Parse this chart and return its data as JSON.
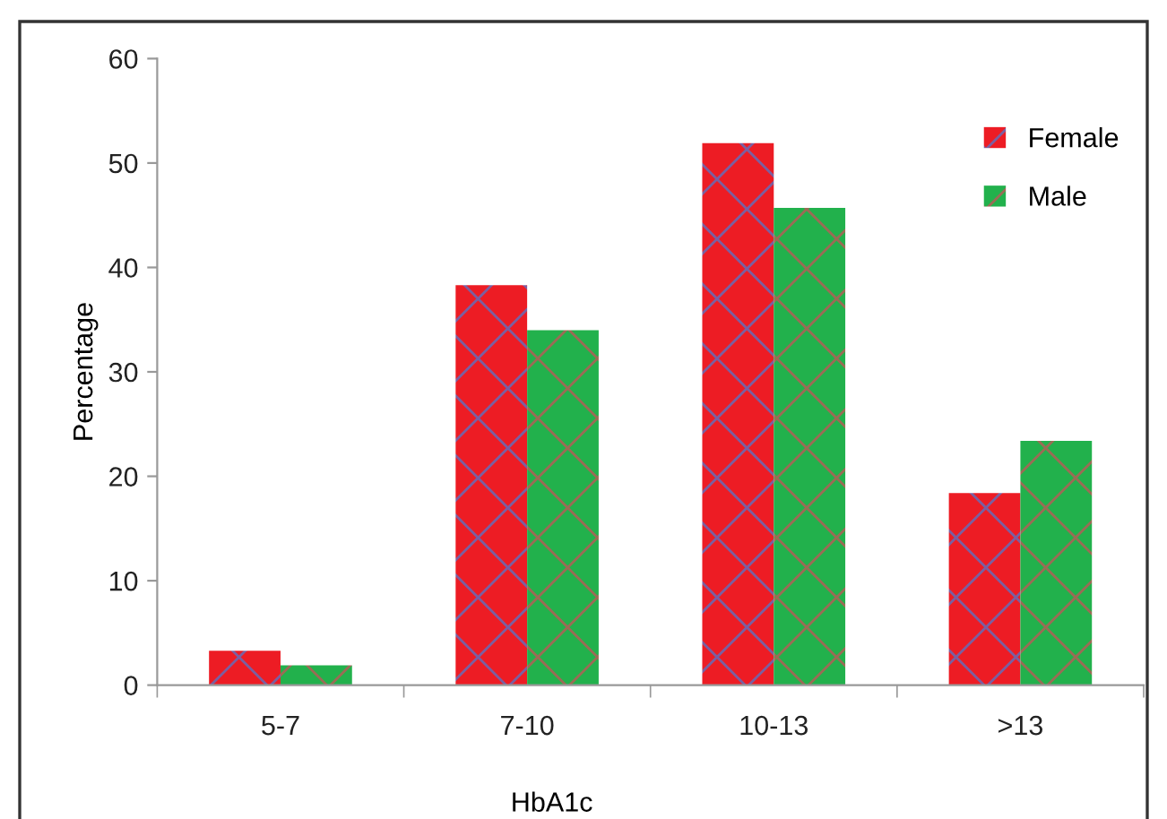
{
  "chart_data": {
    "type": "bar",
    "xlabel": "HbA1c",
    "ylabel": "Percentage",
    "categories": [
      "5-7",
      "7-10",
      "10-13",
      ">13"
    ],
    "series": [
      {
        "name": "Female",
        "color": "#ed1c24",
        "values": [
          3.3,
          38.3,
          51.9,
          18.4
        ]
      },
      {
        "name": "Male",
        "color": "#22b14c",
        "values": [
          1.9,
          34.0,
          45.7,
          23.4
        ]
      }
    ],
    "ylim": [
      0,
      60
    ],
    "yticks": [
      0,
      10,
      20,
      30,
      40,
      50,
      60
    ],
    "grid": false,
    "legend": "top right"
  }
}
